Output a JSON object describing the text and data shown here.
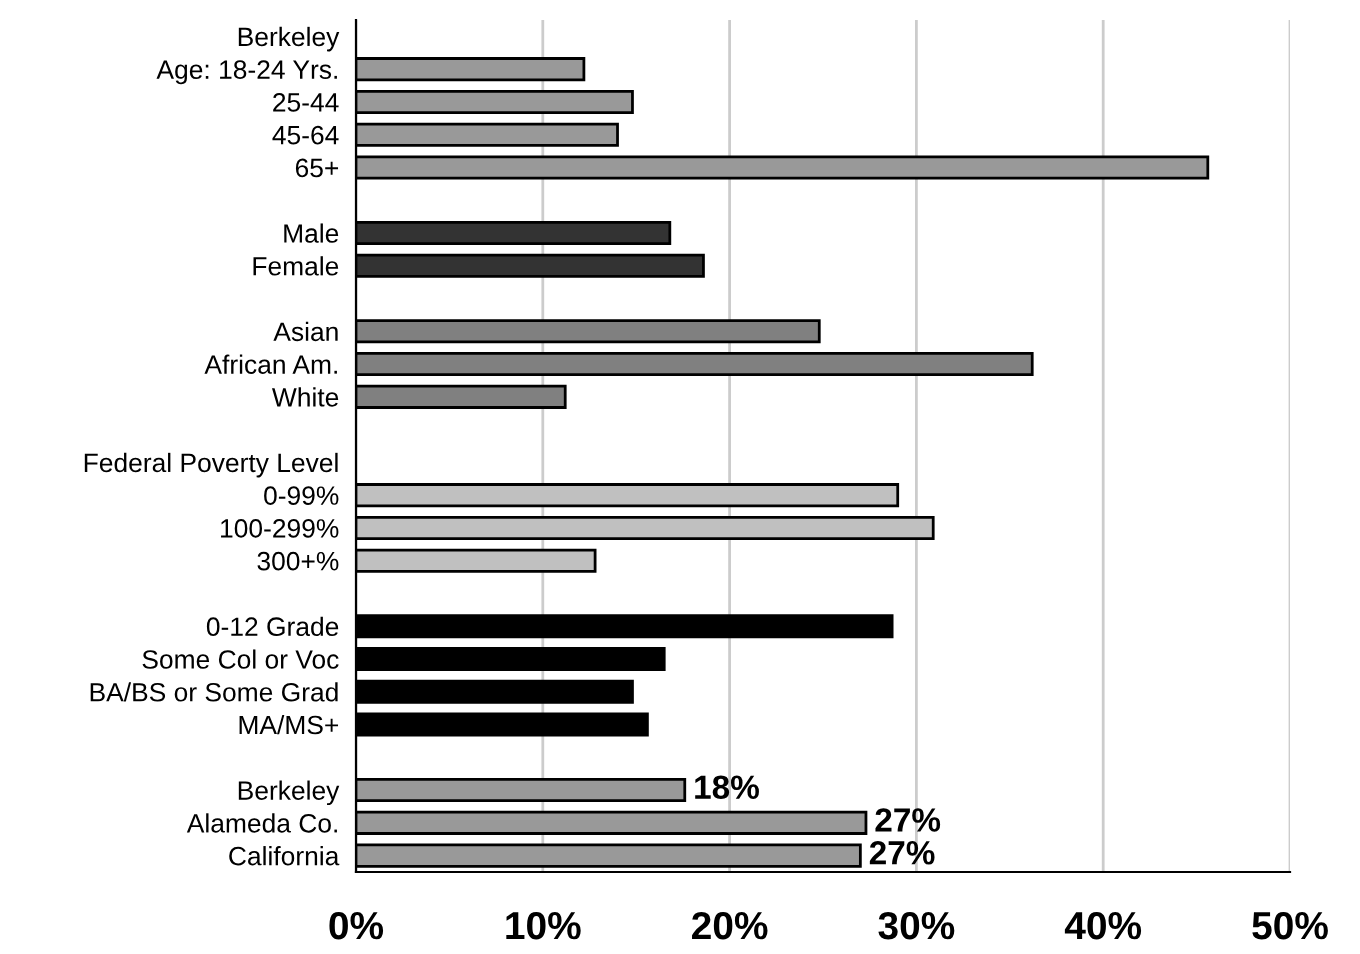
{
  "chart_data": {
    "type": "bar",
    "orientation": "horizontal",
    "categories": [
      "Berkeley",
      "Age: 18-24 Yrs.",
      "25-44",
      "45-64",
      "65+",
      null,
      "Male",
      "Female",
      null,
      "Asian",
      "African Am.",
      "White",
      null,
      "Federal Poverty Level",
      "0-99%",
      "100-299%",
      "300+%",
      null,
      "0-12 Grade",
      "Some Col or Voc",
      "BA/BS or Some Grad",
      "MA/MS+",
      null,
      "Berkeley",
      "Alameda Co.",
      "California"
    ],
    "values": [
      null,
      12.2,
      14.8,
      14.0,
      45.6,
      null,
      16.8,
      18.6,
      null,
      24.8,
      36.2,
      11.2,
      null,
      null,
      29.0,
      30.9,
      12.8,
      null,
      28.7,
      16.5,
      14.8,
      15.6,
      null,
      17.6,
      27.3,
      27.0
    ],
    "colors": [
      null,
      "#999999",
      "#999999",
      "#999999",
      "#999999",
      null,
      "#333333",
      "#333333",
      null,
      "#808080",
      "#808080",
      "#808080",
      null,
      null,
      "#c0c0c0",
      "#c0c0c0",
      "#c0c0c0",
      null,
      "#000000",
      "#000000",
      "#000000",
      "#000000",
      null,
      "#999999",
      "#999999",
      "#999999"
    ],
    "value_labels": [
      null,
      null,
      null,
      null,
      null,
      null,
      null,
      null,
      null,
      null,
      null,
      null,
      null,
      null,
      null,
      null,
      null,
      null,
      null,
      null,
      null,
      null,
      null,
      "18%",
      "27%",
      "27%"
    ],
    "xlim": [
      0,
      50
    ],
    "xticks": [
      {
        "value": 0,
        "label": "0%"
      },
      {
        "value": 10,
        "label": "10%"
      },
      {
        "value": 20,
        "label": "20%"
      },
      {
        "value": 30,
        "label": "30%"
      },
      {
        "value": 40,
        "label": "40%"
      },
      {
        "value": 50,
        "label": "50%"
      }
    ],
    "grid": "x"
  }
}
